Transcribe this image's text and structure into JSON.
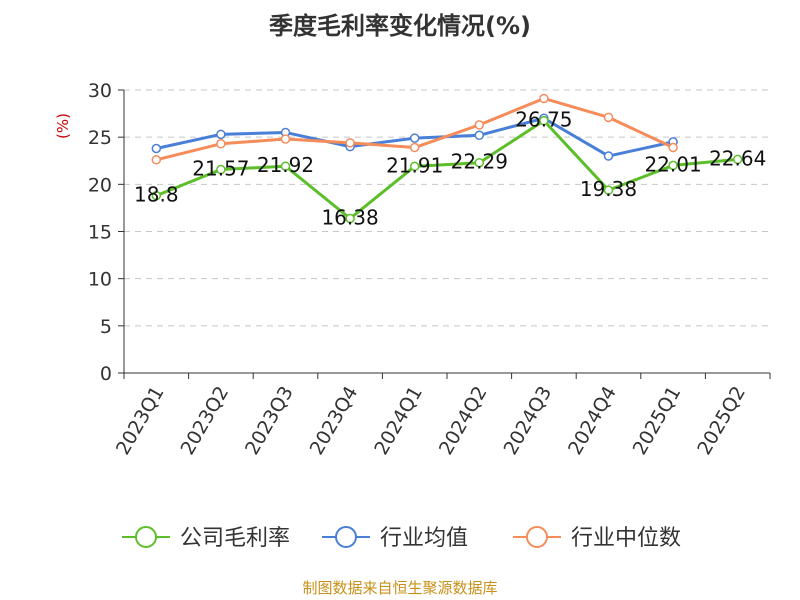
{
  "title": "季度毛利率变化情况(%)",
  "source": "制图数据来自恒生聚源数据库",
  "chart_data": {
    "type": "line",
    "title": "季度毛利率变化情况(%)",
    "ylabel": "(%)",
    "xlabel": "",
    "ylim": [
      0,
      30
    ],
    "yticks": [
      0,
      5,
      10,
      15,
      20,
      25,
      30
    ],
    "grid": true,
    "legend_position": "bottom",
    "categories": [
      "2023Q1",
      "2023Q2",
      "2023Q3",
      "2023Q4",
      "2024Q1",
      "2024Q2",
      "2024Q3",
      "2024Q4",
      "2025Q1",
      "2025Q2"
    ],
    "series": [
      {
        "name": "公司毛利率",
        "color": "#5cbf2a",
        "values": [
          18.8,
          21.57,
          21.92,
          16.38,
          21.91,
          22.29,
          26.75,
          19.38,
          22.01,
          22.64
        ],
        "labels": [
          "18.8",
          "21.57",
          "21.92",
          "16.38",
          "21.91",
          "22.29",
          "26.75",
          "19.38",
          "22.01",
          "22.64"
        ]
      },
      {
        "name": "行业均值",
        "color": "#4a7fd8",
        "values": [
          23.8,
          25.3,
          25.5,
          24.0,
          24.9,
          25.2,
          27.0,
          23.0,
          24.5,
          null
        ]
      },
      {
        "name": "行业中位数",
        "color": "#f58c5a",
        "values": [
          22.6,
          24.3,
          24.8,
          24.4,
          23.9,
          26.3,
          29.1,
          27.1,
          23.9,
          null
        ]
      }
    ]
  }
}
